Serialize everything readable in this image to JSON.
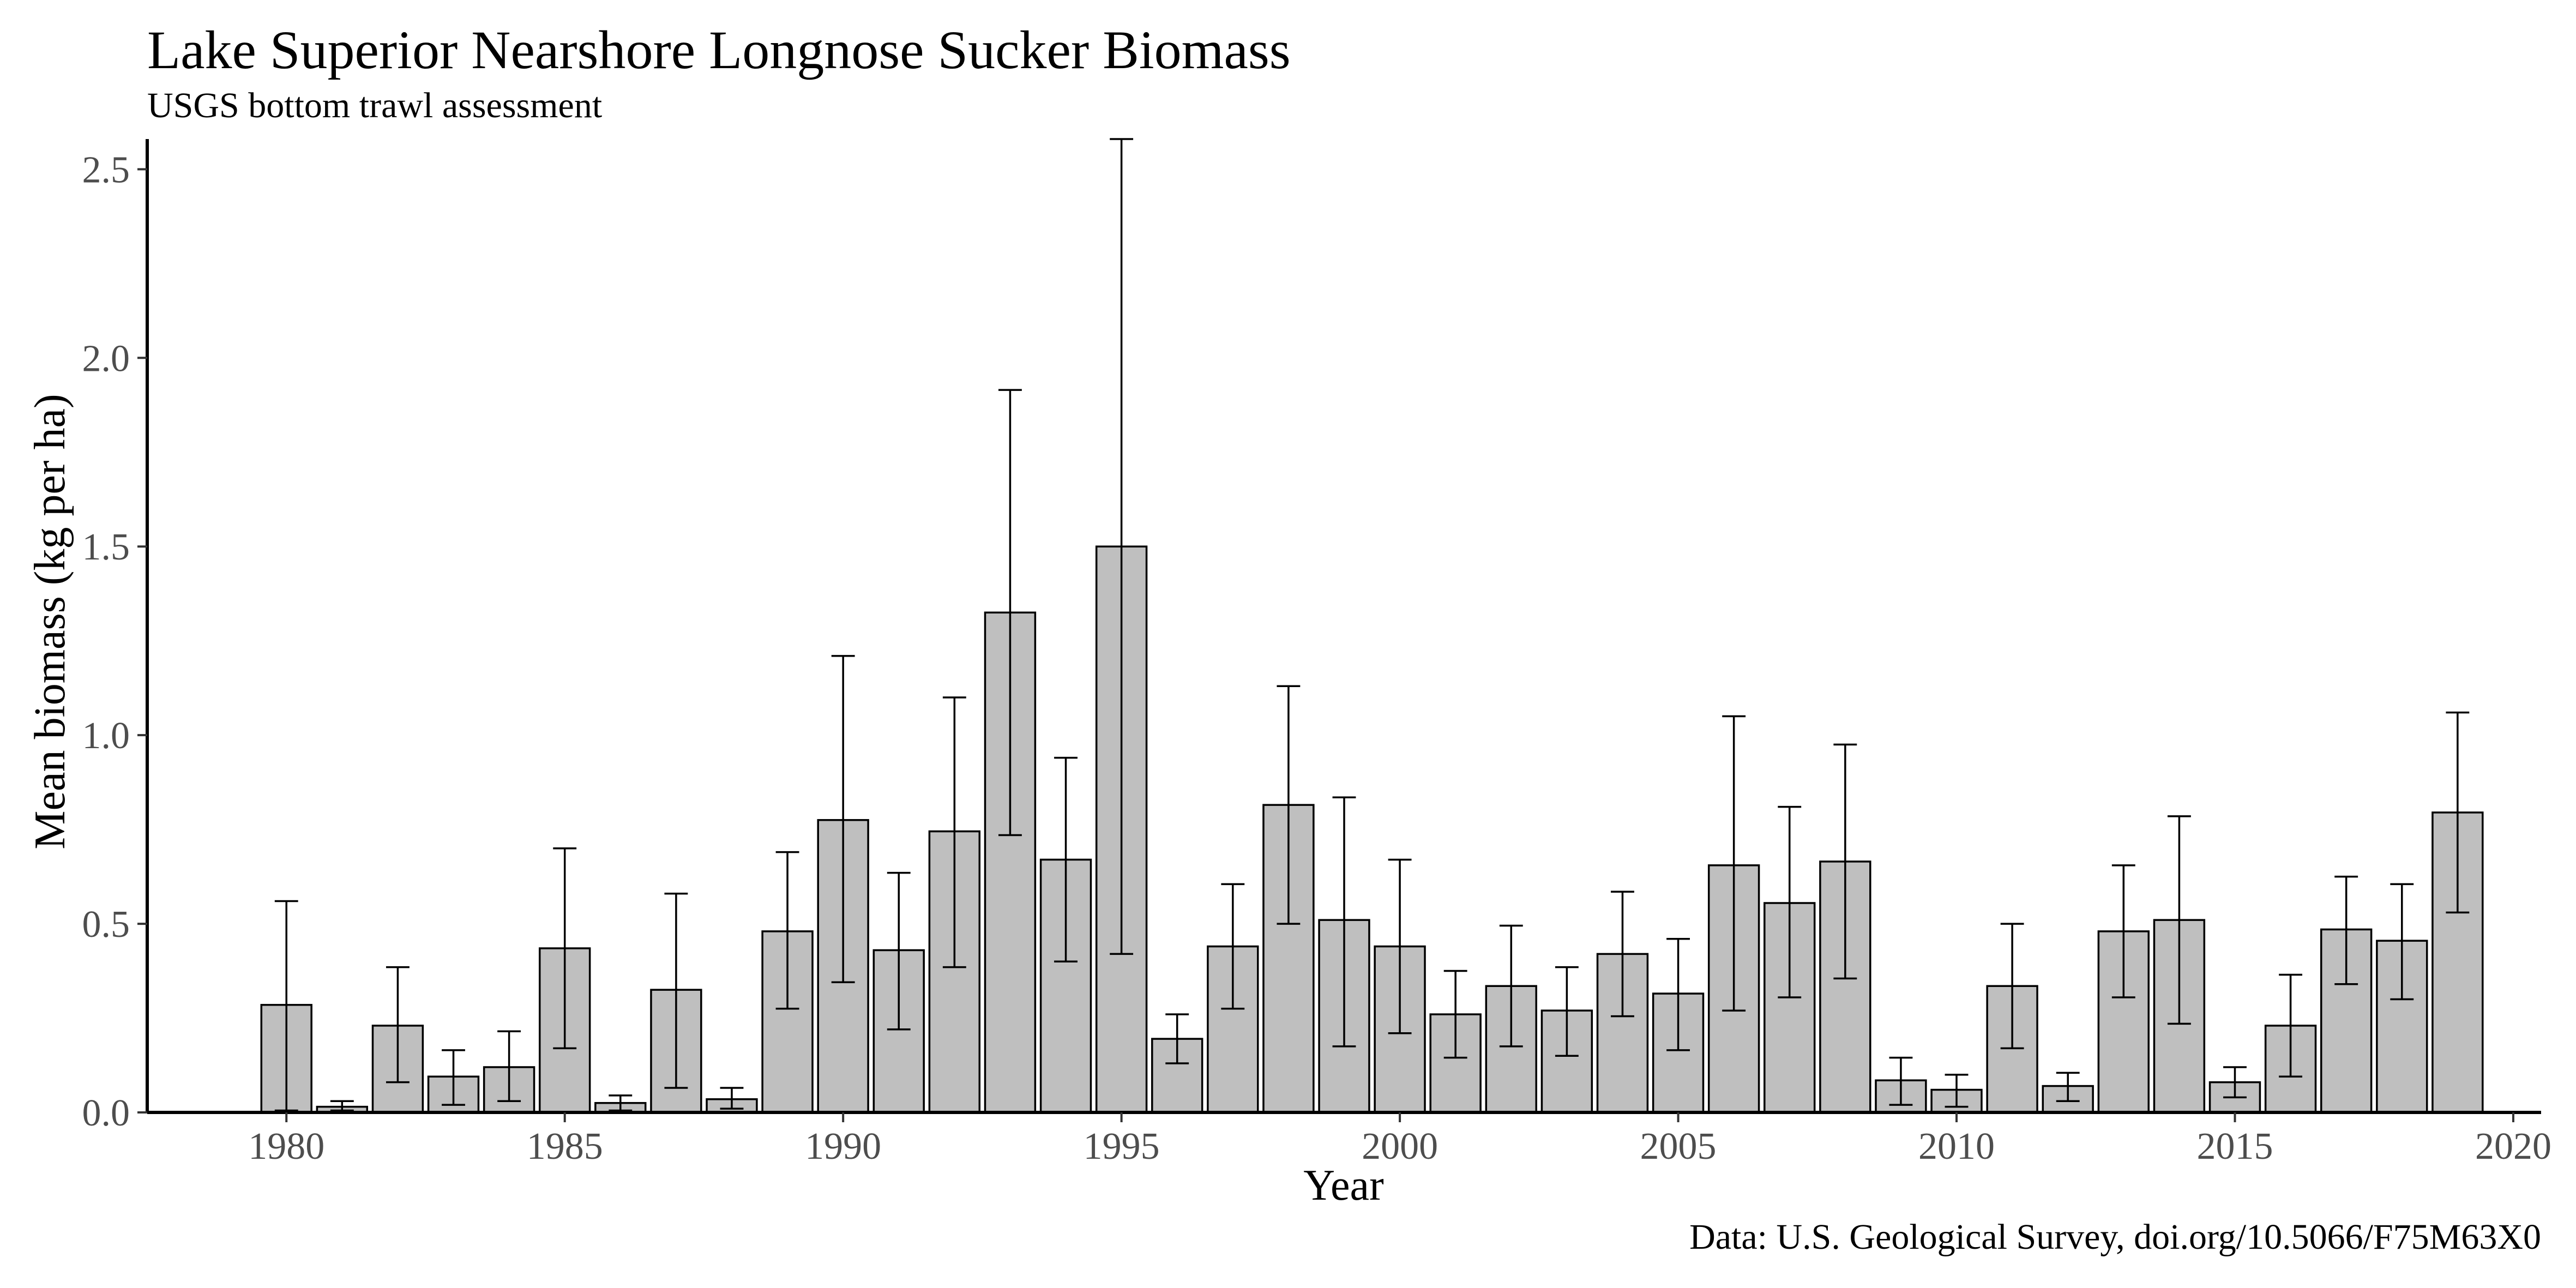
{
  "chart_data": {
    "type": "bar",
    "title": "Lake Superior Nearshore Longnose Sucker Biomass",
    "subtitle": "USGS bottom trawl assessment",
    "caption": "Data: U.S. Geological Survey, doi.org/10.5066/F75M63X0",
    "xlabel": "Year",
    "ylabel": "Mean biomass (kg per ha)",
    "xlim": [
      1977.5,
      2020.5
    ],
    "ylim": [
      0,
      2.58
    ],
    "x_ticks": [
      1980,
      1985,
      1990,
      1995,
      2000,
      2005,
      2010,
      2015,
      2020
    ],
    "y_ticks": [
      0.0,
      0.5,
      1.0,
      1.5,
      2.0,
      2.5
    ],
    "y_tick_labels": [
      "0.0",
      "0.5",
      "1.0",
      "1.5",
      "2.0",
      "2.5"
    ],
    "grid": false,
    "legend": "none",
    "bar_fill": "#bfbfbf",
    "bar_outline": "#000000",
    "years": [
      1980,
      1981,
      1982,
      1983,
      1984,
      1985,
      1986,
      1987,
      1988,
      1989,
      1990,
      1991,
      1992,
      1993,
      1994,
      1995,
      1996,
      1997,
      1998,
      1999,
      2000,
      2001,
      2002,
      2003,
      2004,
      2005,
      2006,
      2007,
      2008,
      2009,
      2010,
      2011,
      2012,
      2013,
      2014,
      2015,
      2016,
      2017,
      2018,
      2019
    ],
    "values": [
      0.285,
      0.015,
      0.23,
      0.095,
      0.12,
      0.435,
      0.025,
      0.325,
      0.035,
      0.48,
      0.775,
      0.43,
      0.745,
      1.325,
      0.67,
      1.5,
      0.195,
      0.44,
      0.815,
      0.51,
      0.44,
      0.26,
      0.335,
      0.27,
      0.42,
      0.315,
      0.655,
      0.555,
      0.665,
      0.085,
      0.06,
      0.335,
      0.07,
      0.48,
      0.51,
      0.08,
      0.23,
      0.485,
      0.455,
      0.795
    ],
    "error_lower": [
      0.005,
      0.005,
      0.08,
      0.02,
      0.03,
      0.17,
      0.005,
      0.065,
      0.01,
      0.275,
      0.345,
      0.22,
      0.385,
      0.735,
      0.4,
      0.42,
      0.13,
      0.275,
      0.5,
      0.175,
      0.21,
      0.145,
      0.175,
      0.15,
      0.255,
      0.165,
      0.27,
      0.305,
      0.355,
      0.02,
      0.015,
      0.17,
      0.03,
      0.305,
      0.235,
      0.04,
      0.095,
      0.34,
      0.3,
      0.53
    ],
    "error_upper": [
      0.56,
      0.03,
      0.385,
      0.165,
      0.215,
      0.7,
      0.045,
      0.58,
      0.065,
      0.69,
      1.21,
      0.635,
      1.1,
      1.915,
      0.94,
      2.58,
      0.26,
      0.605,
      1.13,
      0.835,
      0.67,
      0.375,
      0.495,
      0.385,
      0.585,
      0.46,
      1.05,
      0.81,
      0.975,
      0.145,
      0.1,
      0.5,
      0.105,
      0.655,
      0.785,
      0.12,
      0.365,
      0.625,
      0.605,
      1.06
    ]
  }
}
